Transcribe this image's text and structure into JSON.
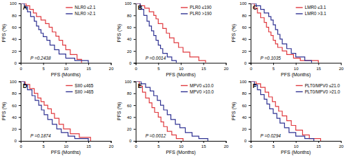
{
  "chart_data": [
    {
      "type": "step",
      "title": "A",
      "x_label": "PFS (Months)",
      "y_label": "PFS (%)",
      "annotation": "P =0.2438",
      "xlim": [
        0,
        20
      ],
      "xticks": [
        0,
        5,
        10,
        15,
        20
      ],
      "ylim": [
        0,
        100
      ],
      "yticks": [
        0,
        20,
        40,
        60,
        80,
        100
      ],
      "legend": "top-right",
      "series": [
        {
          "name": "NLR0 ≤2.1",
          "color": "#e0393e",
          "x": [
            0,
            1.2,
            2,
            2.8,
            3.5,
            4.5,
            5.5,
            6.3,
            7,
            7.8,
            8.5,
            9.3,
            10,
            11,
            12.5,
            13.5
          ],
          "values": [
            100,
            96,
            90,
            84,
            78,
            72,
            66,
            60,
            52,
            45,
            38,
            30,
            22,
            14,
            6,
            0
          ]
        },
        {
          "name": "NLR0 >2.1",
          "color": "#2e3192",
          "x": [
            0,
            0.8,
            1.5,
            2.2,
            3,
            3.5,
            4,
            4.5,
            5,
            5.8,
            6.5,
            7.5,
            8.5,
            10,
            12,
            15
          ],
          "values": [
            100,
            94,
            86,
            78,
            70,
            62,
            56,
            50,
            44,
            38,
            30,
            22,
            15,
            8,
            4,
            0
          ]
        }
      ]
    },
    {
      "type": "step",
      "title": "B",
      "x_label": "PFS (Months)",
      "y_label": "PFS (%)",
      "annotation": "P =0.0014",
      "xlim": [
        0,
        20
      ],
      "xticks": [
        0,
        5,
        10,
        15,
        20
      ],
      "ylim": [
        0,
        100
      ],
      "yticks": [
        0,
        20,
        40,
        60,
        80,
        100
      ],
      "legend": "top-right",
      "series": [
        {
          "name": "PLR0 ≤190",
          "color": "#e0393e",
          "x": [
            0,
            1,
            2,
            3,
            4,
            4.5,
            5,
            6,
            6.8,
            7.5,
            8.5,
            9.5,
            10.5,
            12,
            14,
            15.5
          ],
          "values": [
            100,
            96,
            92,
            86,
            80,
            74,
            66,
            58,
            50,
            42,
            34,
            26,
            18,
            10,
            4,
            0
          ]
        },
        {
          "name": "PLR0 >190",
          "color": "#2e3192",
          "x": [
            0,
            1,
            1.8,
            2.5,
            3,
            3.5,
            4,
            4.5,
            5,
            5.5,
            6,
            7,
            8,
            9
          ],
          "values": [
            100,
            90,
            80,
            70,
            62,
            54,
            46,
            38,
            30,
            24,
            16,
            10,
            4,
            0
          ]
        }
      ]
    },
    {
      "type": "step",
      "title": "C",
      "x_label": "PFS (Months)",
      "y_label": "PFS (%)",
      "annotation": "P =0.1035",
      "xlim": [
        0,
        20
      ],
      "xticks": [
        0,
        5,
        10,
        15,
        20
      ],
      "ylim": [
        0,
        100
      ],
      "yticks": [
        0,
        20,
        40,
        60,
        80,
        100
      ],
      "legend": "top-right",
      "series": [
        {
          "name": "LMR0 ≤3.1",
          "color": "#e0393e",
          "x": [
            0,
            0.8,
            1.5,
            2.2,
            3,
            3.5,
            4,
            4.5,
            5,
            5.5,
            6,
            7,
            8,
            9.5,
            11,
            15
          ],
          "values": [
            100,
            92,
            84,
            76,
            68,
            60,
            52,
            46,
            38,
            32,
            26,
            20,
            14,
            8,
            4,
            0
          ]
        },
        {
          "name": "LMR0 >3.1",
          "color": "#2e3192",
          "x": [
            0,
            1.2,
            2.2,
            3,
            4,
            4.5,
            5,
            5.5,
            6,
            6.5,
            7,
            8,
            9,
            10,
            12,
            13.5
          ],
          "values": [
            100,
            96,
            90,
            84,
            78,
            72,
            64,
            56,
            48,
            40,
            32,
            24,
            16,
            10,
            4,
            0
          ]
        }
      ]
    },
    {
      "type": "step",
      "title": "D",
      "x_label": "PFS (Months)",
      "y_label": "PFS (%)",
      "annotation": "P =0.1874",
      "xlim": [
        0,
        20
      ],
      "xticks": [
        0,
        5,
        10,
        15,
        20
      ],
      "ylim": [
        0,
        100
      ],
      "yticks": [
        0,
        20,
        40,
        60,
        80,
        100
      ],
      "legend": "top-right",
      "series": [
        {
          "name": "SII0 ≤465",
          "color": "#e0393e",
          "x": [
            0,
            1,
            2,
            3,
            3.8,
            4.5,
            5.2,
            6,
            6.8,
            7.5,
            8.5,
            9.5,
            11,
            13,
            15.5
          ],
          "values": [
            100,
            95,
            88,
            80,
            72,
            66,
            60,
            54,
            46,
            38,
            28,
            20,
            12,
            6,
            0
          ]
        },
        {
          "name": "SII0 >465",
          "color": "#2e3192",
          "x": [
            0,
            0.8,
            1.5,
            2.5,
            3.2,
            4,
            4.6,
            5.2,
            6,
            7,
            8,
            9,
            10.5,
            12,
            15
          ],
          "values": [
            100,
            94,
            86,
            76,
            68,
            60,
            52,
            44,
            36,
            28,
            20,
            14,
            8,
            4,
            0
          ]
        }
      ]
    },
    {
      "type": "step",
      "title": "E",
      "x_label": "PFS (Months)",
      "y_label": "PFS (%)",
      "annotation": "P =0.0012",
      "xlim": [
        0,
        20
      ],
      "xticks": [
        0,
        5,
        10,
        15,
        20
      ],
      "ylim": [
        0,
        100
      ],
      "yticks": [
        0,
        20,
        40,
        60,
        80,
        100
      ],
      "legend": "top-right",
      "series": [
        {
          "name": "MPV0 ≤10.0",
          "color": "#e0393e",
          "x": [
            0,
            0.8,
            1.5,
            2.2,
            3,
            3.6,
            4.2,
            5,
            5.6,
            6.2,
            7,
            8,
            9,
            10.5
          ],
          "values": [
            100,
            92,
            82,
            72,
            64,
            56,
            48,
            40,
            32,
            24,
            16,
            10,
            4,
            0
          ]
        },
        {
          "name": "MPV0 >10.0",
          "color": "#2e3192",
          "x": [
            0,
            1.2,
            2.2,
            3.2,
            4,
            4.8,
            5.5,
            6.2,
            7,
            7.8,
            8.8,
            9.8,
            11,
            12.5,
            14,
            16
          ],
          "values": [
            100,
            96,
            90,
            84,
            76,
            68,
            60,
            52,
            44,
            36,
            28,
            22,
            14,
            8,
            4,
            0
          ]
        }
      ]
    },
    {
      "type": "step",
      "title": "F",
      "x_label": "PFS (Months)",
      "y_label": "PFS (%)",
      "annotation": "P =0.0294",
      "xlim": [
        0,
        20
      ],
      "xticks": [
        0,
        5,
        10,
        15,
        20
      ],
      "ylim": [
        0,
        100
      ],
      "yticks": [
        0,
        20,
        40,
        60,
        80,
        100
      ],
      "legend": "top-right",
      "series": [
        {
          "name": "PLT0/MPV0 ≤21.0",
          "color": "#e0393e",
          "x": [
            0,
            1.2,
            2.2,
            3.2,
            4,
            4.8,
            5.5,
            6.2,
            7,
            8,
            9,
            10,
            11.5,
            13,
            15.5
          ],
          "values": [
            100,
            96,
            90,
            82,
            74,
            66,
            58,
            50,
            42,
            34,
            26,
            18,
            10,
            4,
            0
          ]
        },
        {
          "name": "PLT0/MPV0 >21.0",
          "color": "#2e3192",
          "x": [
            0,
            0.8,
            1.5,
            2.2,
            3,
            3.6,
            4.2,
            5,
            5.8,
            6.5,
            7.5,
            8.5,
            10,
            12,
            14
          ],
          "values": [
            100,
            94,
            86,
            78,
            70,
            62,
            54,
            46,
            38,
            30,
            22,
            14,
            8,
            4,
            0
          ]
        }
      ]
    }
  ]
}
